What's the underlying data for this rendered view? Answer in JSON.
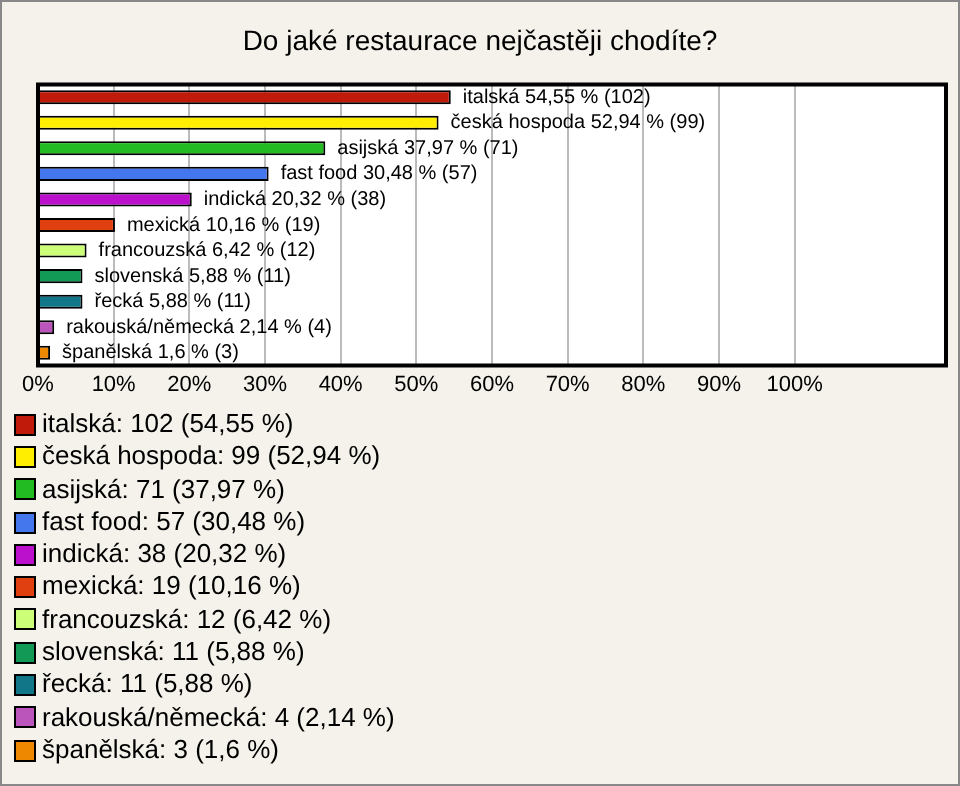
{
  "chart_data": {
    "type": "bar",
    "orientation": "horizontal",
    "title": "Do jaké restaurace nejčastěji chodíte?",
    "categories": [
      null,
      null,
      null,
      null,
      null,
      null,
      null,
      null,
      null,
      null,
      null
    ],
    "values": [
      54.55,
      52.94,
      37.97,
      30.48,
      20.32,
      10.16,
      6.42,
      5.88,
      5.88,
      2.14,
      1.6
    ],
    "colors": [
      "#c01a0a",
      "#ffee00",
      "#22bb22",
      "#4477ee",
      "#bb11cc",
      "#e04010",
      "#ccff77",
      "#119955",
      "#117788",
      "#bb55bb",
      "#ee8800"
    ],
    "value_labels": [
      "italská 54,55 % (102)",
      "česká hospoda 52,94 % (99)",
      "asijská 37,97 % (71)",
      "fast food 30,48 % (57)",
      "indická 20,32 % (38)",
      "mexická 10,16 % (19)",
      "francouzská 6,42 % (12)",
      "slovenská 5,88 % (11)",
      "řecká 5,88 % (11)",
      "rakouská/německá 2,14 % (4)",
      "španělská 1,6 % (3)"
    ],
    "xlim": [
      0,
      120
    ],
    "xticks": [
      {
        "value": 0,
        "label": "0%"
      },
      {
        "value": 10,
        "label": "10%"
      },
      {
        "value": 20,
        "label": "20%"
      },
      {
        "value": 30,
        "label": "30%"
      },
      {
        "value": 40,
        "label": "40%"
      },
      {
        "value": 50,
        "label": "50%"
      },
      {
        "value": 60,
        "label": "60%"
      },
      {
        "value": 70,
        "label": "70%"
      },
      {
        "value": 80,
        "label": "80%"
      },
      {
        "value": 90,
        "label": "90%"
      },
      {
        "value": 100,
        "label": "100%"
      }
    ],
    "grid": "x",
    "annotations": [
      "italská: 102 (54,55 %)",
      "česká hospoda: 99 (52,94 %)",
      "asijská: 71 (37,97 %)",
      "fast food: 57 (30,48 %)",
      "indická: 38 (20,32 %)",
      "mexická: 19 (10,16 %)",
      "francouzská: 12 (6,42 %)",
      "slovenská: 11 (5,88 %)",
      "řecká: 11 (5,88 %)",
      "rakouská/německá: 4 (2,14 %)",
      "španělská: 3 (1,6 %)"
    ]
  }
}
